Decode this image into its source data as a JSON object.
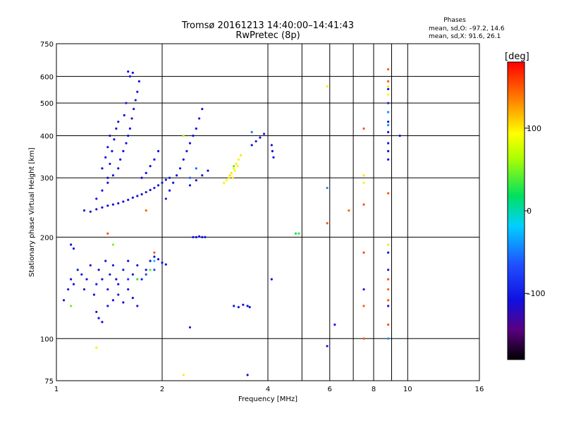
{
  "header": {
    "title_line1": "Tromsø 20161213 14:40:00–14:41:43",
    "title_line2": "RwPretec (8p)",
    "stats_title": "Phases",
    "stats_o": "mean, sd,O: –97.2, 14.6",
    "stats_x": "mean, sd,X:  91.6, 26.1"
  },
  "colorbar": {
    "label": "[deg]",
    "ticks": [
      {
        "value": 100,
        "label": "100"
      },
      {
        "value": 0,
        "label": "0"
      },
      {
        "value": -100,
        "label": "–100"
      }
    ],
    "range": [
      -180,
      180
    ]
  },
  "chart_data": {
    "type": "scatter",
    "xlabel": "Frequency [MHz]",
    "ylabel": "Stationary phase Virtual Height [km]",
    "x_scale": "log",
    "y_scale": "log",
    "xlim": [
      1,
      16
    ],
    "ylim": [
      75,
      750
    ],
    "grid": true,
    "x_ticks": [
      {
        "value": 1,
        "label": "1"
      },
      {
        "value": 2,
        "label": "2"
      },
      {
        "value": 4,
        "label": "4"
      },
      {
        "value": 6,
        "label": "6"
      },
      {
        "value": 8,
        "label": "8"
      },
      {
        "value": 10,
        "label": "10"
      },
      {
        "value": 16,
        "label": "16"
      }
    ],
    "x_grid_extra": [
      5,
      7,
      9
    ],
    "y_ticks": [
      {
        "value": 75,
        "label": "75"
      },
      {
        "value": 100,
        "label": "100"
      },
      {
        "value": 200,
        "label": "200"
      },
      {
        "value": 300,
        "label": "300"
      },
      {
        "value": 400,
        "label": "400"
      },
      {
        "value": 500,
        "label": "500"
      },
      {
        "value": 600,
        "label": "600"
      },
      {
        "value": 750,
        "label": "750"
      }
    ],
    "series": [
      {
        "points": [
          [
            1.05,
            130,
            -110
          ],
          [
            1.08,
            140,
            -105
          ],
          [
            1.1,
            150,
            -108
          ],
          [
            1.12,
            145,
            -112
          ],
          [
            1.15,
            160,
            -100
          ],
          [
            1.18,
            155,
            -106
          ],
          [
            1.2,
            140,
            -110
          ],
          [
            1.22,
            150,
            -104
          ],
          [
            1.25,
            165,
            -108
          ],
          [
            1.28,
            135,
            -112
          ],
          [
            1.3,
            145,
            -100
          ],
          [
            1.32,
            160,
            -110
          ],
          [
            1.35,
            150,
            -106
          ],
          [
            1.38,
            170,
            -108
          ],
          [
            1.4,
            140,
            -104
          ],
          [
            1.42,
            155,
            -110
          ],
          [
            1.45,
            165,
            -100
          ],
          [
            1.48,
            150,
            -112
          ],
          [
            1.5,
            145,
            -108
          ],
          [
            1.55,
            160,
            -104
          ],
          [
            1.6,
            170,
            -110
          ],
          [
            1.65,
            155,
            -106
          ],
          [
            1.7,
            165,
            -108
          ],
          [
            1.75,
            150,
            -100
          ],
          [
            1.8,
            160,
            -112
          ],
          [
            1.85,
            170,
            -104
          ],
          [
            1.9,
            175,
            -108
          ],
          [
            1.95,
            172,
            -110
          ],
          [
            2.0,
            168,
            -106
          ],
          [
            2.05,
            166,
            -104
          ],
          [
            1.1,
            190,
            -110
          ],
          [
            1.12,
            185,
            -108
          ],
          [
            1.3,
            120,
            -112
          ],
          [
            1.32,
            115,
            -106
          ],
          [
            1.35,
            112,
            -110
          ],
          [
            1.4,
            125,
            -104
          ],
          [
            1.45,
            130,
            -108
          ],
          [
            1.5,
            135,
            -100
          ],
          [
            1.55,
            128,
            -110
          ],
          [
            1.6,
            140,
            -106
          ],
          [
            1.65,
            132,
            -112
          ],
          [
            1.7,
            125,
            -104
          ],
          [
            1.2,
            240,
            -110
          ],
          [
            1.25,
            238,
            -106
          ],
          [
            1.3,
            242,
            -108
          ],
          [
            1.35,
            245,
            -104
          ],
          [
            1.4,
            248,
            -110
          ],
          [
            1.45,
            250,
            -112
          ],
          [
            1.5,
            252,
            -106
          ],
          [
            1.55,
            255,
            -108
          ],
          [
            1.6,
            258,
            -104
          ],
          [
            1.65,
            262,
            -110
          ],
          [
            1.7,
            265,
            -106
          ],
          [
            1.75,
            268,
            -108
          ],
          [
            1.8,
            272,
            -104
          ],
          [
            1.85,
            276,
            -110
          ],
          [
            1.9,
            280,
            -106
          ],
          [
            1.95,
            285,
            -108
          ],
          [
            2.0,
            290,
            -104
          ],
          [
            2.05,
            296,
            -110
          ],
          [
            2.1,
            300,
            -106
          ],
          [
            1.3,
            260,
            -108
          ],
          [
            1.35,
            275,
            -104
          ],
          [
            1.4,
            290,
            -110
          ],
          [
            1.45,
            305,
            -106
          ],
          [
            1.5,
            320,
            -108
          ],
          [
            1.52,
            340,
            -104
          ],
          [
            1.55,
            360,
            -110
          ],
          [
            1.58,
            380,
            -106
          ],
          [
            1.6,
            400,
            -108
          ],
          [
            1.62,
            420,
            -104
          ],
          [
            1.64,
            450,
            -110
          ],
          [
            1.66,
            480,
            -106
          ],
          [
            1.68,
            510,
            -108
          ],
          [
            1.7,
            540,
            -104
          ],
          [
            1.72,
            580,
            -110
          ],
          [
            1.62,
            600,
            -106
          ],
          [
            1.65,
            615,
            -108
          ],
          [
            1.6,
            620,
            -104
          ],
          [
            1.4,
            300,
            -110
          ],
          [
            1.42,
            330,
            -106
          ],
          [
            1.44,
            360,
            -108
          ],
          [
            1.46,
            390,
            -104
          ],
          [
            1.48,
            420,
            -110
          ],
          [
            1.5,
            440,
            -106
          ],
          [
            1.35,
            320,
            -108
          ],
          [
            1.38,
            345,
            -104
          ],
          [
            1.4,
            370,
            -110
          ],
          [
            1.42,
            400,
            -106
          ],
          [
            1.56,
            460,
            -108
          ],
          [
            1.58,
            500,
            -104
          ],
          [
            1.75,
            300,
            -110
          ],
          [
            1.8,
            310,
            -106
          ],
          [
            1.85,
            325,
            -108
          ],
          [
            1.9,
            340,
            -104
          ],
          [
            1.95,
            360,
            -110
          ],
          [
            2.05,
            260,
            -106
          ],
          [
            2.1,
            275,
            -108
          ],
          [
            2.15,
            290,
            -104
          ],
          [
            2.2,
            305,
            -110
          ],
          [
            2.25,
            320,
            -106
          ],
          [
            2.3,
            340,
            -108
          ],
          [
            2.35,
            360,
            -104
          ],
          [
            2.4,
            380,
            -110
          ],
          [
            2.45,
            400,
            -106
          ],
          [
            2.5,
            420,
            -108
          ],
          [
            2.55,
            450,
            -104
          ],
          [
            2.6,
            480,
            -110
          ],
          [
            2.4,
            285,
            -106
          ],
          [
            2.5,
            295,
            -108
          ],
          [
            2.6,
            305,
            -104
          ],
          [
            2.7,
            315,
            -110
          ],
          [
            2.45,
            200,
            -106
          ],
          [
            2.5,
            200,
            -108
          ],
          [
            2.55,
            201,
            -104
          ],
          [
            2.6,
            200,
            -110
          ],
          [
            2.65,
            200,
            -106
          ],
          [
            3.6,
            375,
            -108
          ],
          [
            3.7,
            385,
            -104
          ],
          [
            3.8,
            395,
            -110
          ],
          [
            3.9,
            405,
            -106
          ],
          [
            3.2,
            125,
            -108
          ],
          [
            3.3,
            124,
            -104
          ],
          [
            3.4,
            126,
            -110
          ],
          [
            3.5,
            125,
            -106
          ],
          [
            3.55,
            124,
            -108
          ],
          [
            4.1,
            375,
            -104
          ],
          [
            4.12,
            360,
            -110
          ],
          [
            4.15,
            345,
            -106
          ],
          [
            4.1,
            150,
            -108
          ],
          [
            8.8,
            550,
            -108
          ],
          [
            8.8,
            500,
            -104
          ],
          [
            8.8,
            470,
            -110
          ],
          [
            8.8,
            440,
            -106
          ],
          [
            8.8,
            410,
            -108
          ],
          [
            8.8,
            380,
            -104
          ],
          [
            8.8,
            360,
            -110
          ],
          [
            8.8,
            340,
            -106
          ],
          [
            9.5,
            400,
            -108
          ],
          [
            8.8,
            180,
            -104
          ],
          [
            8.8,
            160,
            -110
          ],
          [
            8.8,
            125,
            -106
          ],
          [
            5.9,
            95,
            -108
          ],
          [
            6.2,
            110,
            -104
          ],
          [
            2.4,
            108,
            -106
          ],
          [
            3.5,
            78,
            -110
          ],
          [
            7.5,
            140,
            -108
          ]
        ],
        "colors_note": "phase coloring uses colorbar"
      },
      {
        "points": [
          [
            3.0,
            290,
            100
          ],
          [
            3.05,
            295,
            98
          ],
          [
            3.1,
            300,
            102
          ],
          [
            3.15,
            310,
            104
          ],
          [
            3.2,
            320,
            96
          ],
          [
            3.25,
            330,
            100
          ],
          [
            3.3,
            340,
            98
          ],
          [
            3.35,
            350,
            102
          ],
          [
            3.12,
            305,
            104
          ],
          [
            3.22,
            315,
            100
          ],
          [
            3.28,
            325,
            96
          ],
          [
            3.18,
            300,
            102
          ],
          [
            8.8,
            560,
            100
          ],
          [
            8.8,
            530,
            98
          ],
          [
            7.5,
            305,
            102
          ],
          [
            7.5,
            290,
            98
          ],
          [
            5.9,
            560,
            100
          ],
          [
            2.3,
            78,
            100
          ],
          [
            1.3,
            94,
            100
          ],
          [
            8.8,
            190,
            102
          ]
        ]
      },
      {
        "points": [
          [
            7.5,
            420,
            150
          ],
          [
            7.5,
            250,
            152
          ],
          [
            6.8,
            240,
            148
          ],
          [
            5.9,
            220,
            150
          ],
          [
            7.5,
            180,
            152
          ],
          [
            7.5,
            125,
            148
          ],
          [
            8.8,
            270,
            150
          ],
          [
            8.8,
            150,
            152
          ],
          [
            8.8,
            140,
            148
          ],
          [
            8.8,
            130,
            150
          ],
          [
            8.8,
            110,
            152
          ],
          [
            1.8,
            240,
            148
          ],
          [
            1.9,
            180,
            150
          ],
          [
            1.4,
            205,
            152
          ],
          [
            8.8,
            630,
            150
          ],
          [
            8.8,
            580,
            148
          ],
          [
            7.5,
            100,
            150
          ]
        ]
      },
      {
        "points": [
          [
            1.6,
            150,
            -80
          ],
          [
            1.8,
            155,
            -75
          ],
          [
            1.9,
            160,
            -70
          ],
          [
            2.4,
            300,
            -60
          ],
          [
            2.5,
            320,
            -55
          ],
          [
            3.6,
            410,
            -50
          ],
          [
            8.8,
            430,
            -40
          ],
          [
            8.8,
            470,
            -30
          ],
          [
            5.9,
            280,
            -45
          ],
          [
            8.8,
            100,
            -40
          ],
          [
            1.9,
            170,
            -20
          ],
          [
            1.7,
            150,
            30
          ]
        ]
      },
      {
        "points": [
          [
            1.45,
            190,
            50
          ],
          [
            1.85,
            160,
            40
          ],
          [
            4.8,
            205,
            20
          ],
          [
            4.9,
            205,
            30
          ],
          [
            2.3,
            400,
            60
          ],
          [
            1.1,
            125,
            45
          ],
          [
            3.2,
            325,
            40
          ]
        ]
      }
    ]
  }
}
